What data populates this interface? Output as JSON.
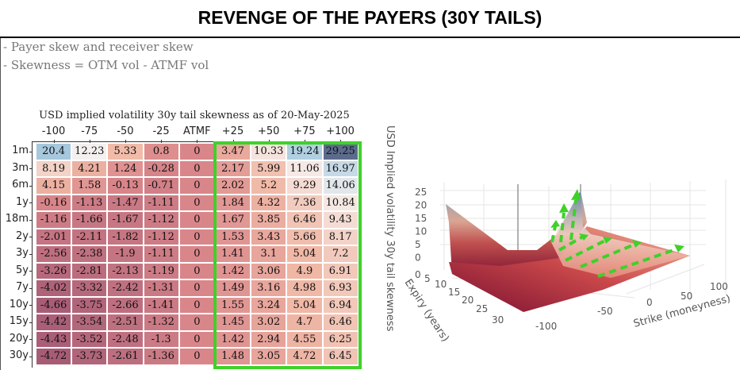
{
  "title": "REVENGE OF THE PAYERS (30Y TAILS)",
  "bullets": [
    "- Payer skew and receiver skew",
    "- Skewness = OTM vol - ATMF vol"
  ],
  "colors": {
    "highlight": "#3fd12a",
    "low": "#a45a75",
    "zero": "#d9868a",
    "mid": "#f0b8a6",
    "neutral": "#f6f1ef",
    "high": "#a9cbe0",
    "max": "#5c6b8c"
  },
  "chart_data": [
    {
      "type": "heatmap",
      "title": "USD implied volatility 30y tail skewness as of 20-May-2025",
      "columns": [
        "-100",
        "-75",
        "-50",
        "-25",
        "ATMF",
        "+25",
        "+50",
        "+75",
        "+100"
      ],
      "rows": [
        "1m",
        "3m",
        "6m",
        "1y",
        "18m",
        "2y",
        "3y",
        "5y",
        "7y",
        "10y",
        "15y",
        "20y",
        "30y"
      ],
      "values": [
        [
          20.4,
          12.23,
          5.33,
          0.8,
          0,
          3.47,
          10.33,
          19.24,
          29.25
        ],
        [
          8.19,
          4.21,
          1.24,
          -0.28,
          0,
          2.17,
          5.99,
          11.06,
          16.97
        ],
        [
          4.15,
          1.58,
          -0.13,
          -0.71,
          0,
          2.02,
          5.2,
          9.29,
          14.06
        ],
        [
          -0.16,
          -1.13,
          -1.47,
          -1.11,
          0,
          1.84,
          4.32,
          7.36,
          10.84
        ],
        [
          -1.16,
          -1.66,
          -1.67,
          -1.12,
          0,
          1.67,
          3.85,
          6.46,
          9.43
        ],
        [
          -2.01,
          -2.11,
          -1.82,
          -1.12,
          0,
          1.53,
          3.43,
          5.66,
          8.17
        ],
        [
          -2.56,
          -2.38,
          -1.9,
          -1.11,
          0,
          1.41,
          3.1,
          5.04,
          7.2
        ],
        [
          -3.26,
          -2.81,
          -2.13,
          -1.19,
          0,
          1.42,
          3.06,
          4.9,
          6.91
        ],
        [
          -4.02,
          -3.32,
          -2.42,
          -1.31,
          0,
          1.49,
          3.16,
          4.98,
          6.93
        ],
        [
          -4.66,
          -3.75,
          -2.66,
          -1.41,
          0,
          1.55,
          3.24,
          5.04,
          6.94
        ],
        [
          -4.42,
          -3.54,
          -2.51,
          -1.32,
          0,
          1.45,
          3.02,
          4.7,
          6.46
        ],
        [
          -4.43,
          -3.52,
          -2.48,
          -1.3,
          0,
          1.42,
          2.94,
          4.55,
          6.25
        ],
        [
          -4.72,
          -3.73,
          -2.61,
          -1.36,
          0,
          1.48,
          3.05,
          4.72,
          6.45
        ]
      ],
      "highlighted_columns": [
        "+25",
        "+50",
        "+75",
        "+100"
      ]
    },
    {
      "type": "surface",
      "zlabel": "USD Implied volatility 30y tail skewness",
      "ylabel": "Expiry (years)",
      "xlabel": "Strike (moneyness)",
      "z_ticks": [
        "25",
        "20",
        "15",
        "10",
        "5",
        "0"
      ],
      "y_ticks": [
        "0",
        "5",
        "10",
        "15",
        "20",
        "25",
        "30"
      ],
      "x_ticks": [
        "100",
        "50",
        "0",
        "-50",
        "-100"
      ]
    }
  ]
}
